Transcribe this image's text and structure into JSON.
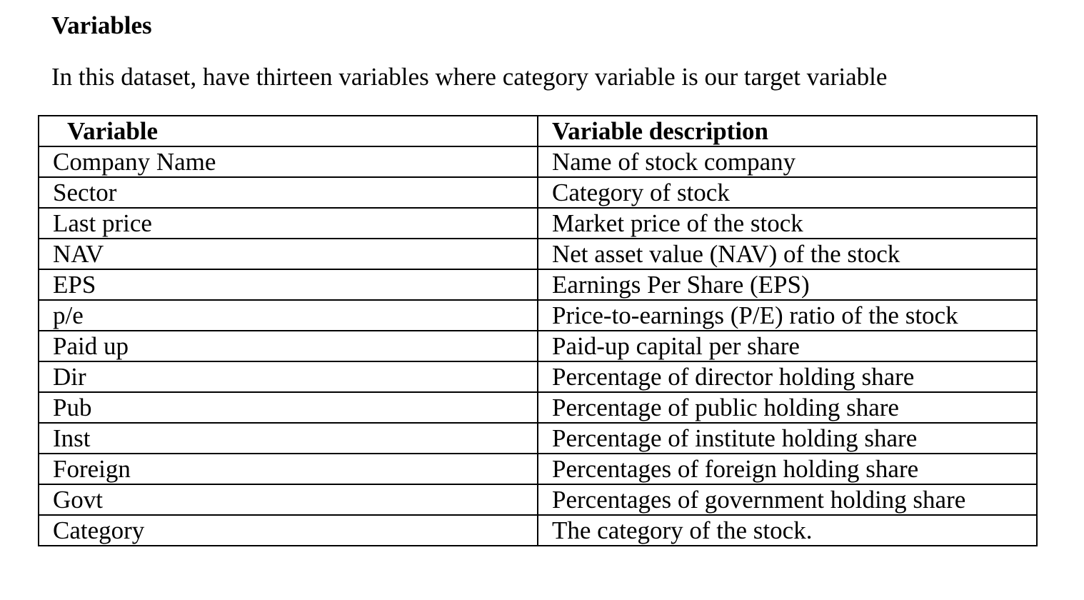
{
  "heading": "Variables",
  "intro": "In this dataset, have thirteen variables where category variable is our target variable",
  "table": {
    "headers": [
      "Variable",
      "Variable description"
    ],
    "rows": [
      {
        "variable": "Company Name",
        "description": "Name of stock company"
      },
      {
        "variable": "Sector",
        "description": "Category of stock"
      },
      {
        "variable": "Last price",
        "description": "Market price of the stock"
      },
      {
        "variable": "NAV",
        "description": "Net asset value (NAV) of the stock"
      },
      {
        "variable": "EPS",
        "description": "Earnings Per Share (EPS)"
      },
      {
        "variable": "p/e",
        "description": "Price-to-earnings (P/E) ratio of the stock"
      },
      {
        "variable": "Paid up",
        "description": "Paid-up capital per share"
      },
      {
        "variable": "Dir",
        "description": "Percentage of director holding share"
      },
      {
        "variable": "Pub",
        "description": "Percentage of public holding share"
      },
      {
        "variable": "Inst",
        "description": "Percentage of institute holding share"
      },
      {
        "variable": "Foreign",
        "description": "Percentages of foreign holding share"
      },
      {
        "variable": "Govt",
        "description": "Percentages of government holding share"
      },
      {
        "variable": "Category",
        "description": "The category of the stock."
      }
    ]
  }
}
